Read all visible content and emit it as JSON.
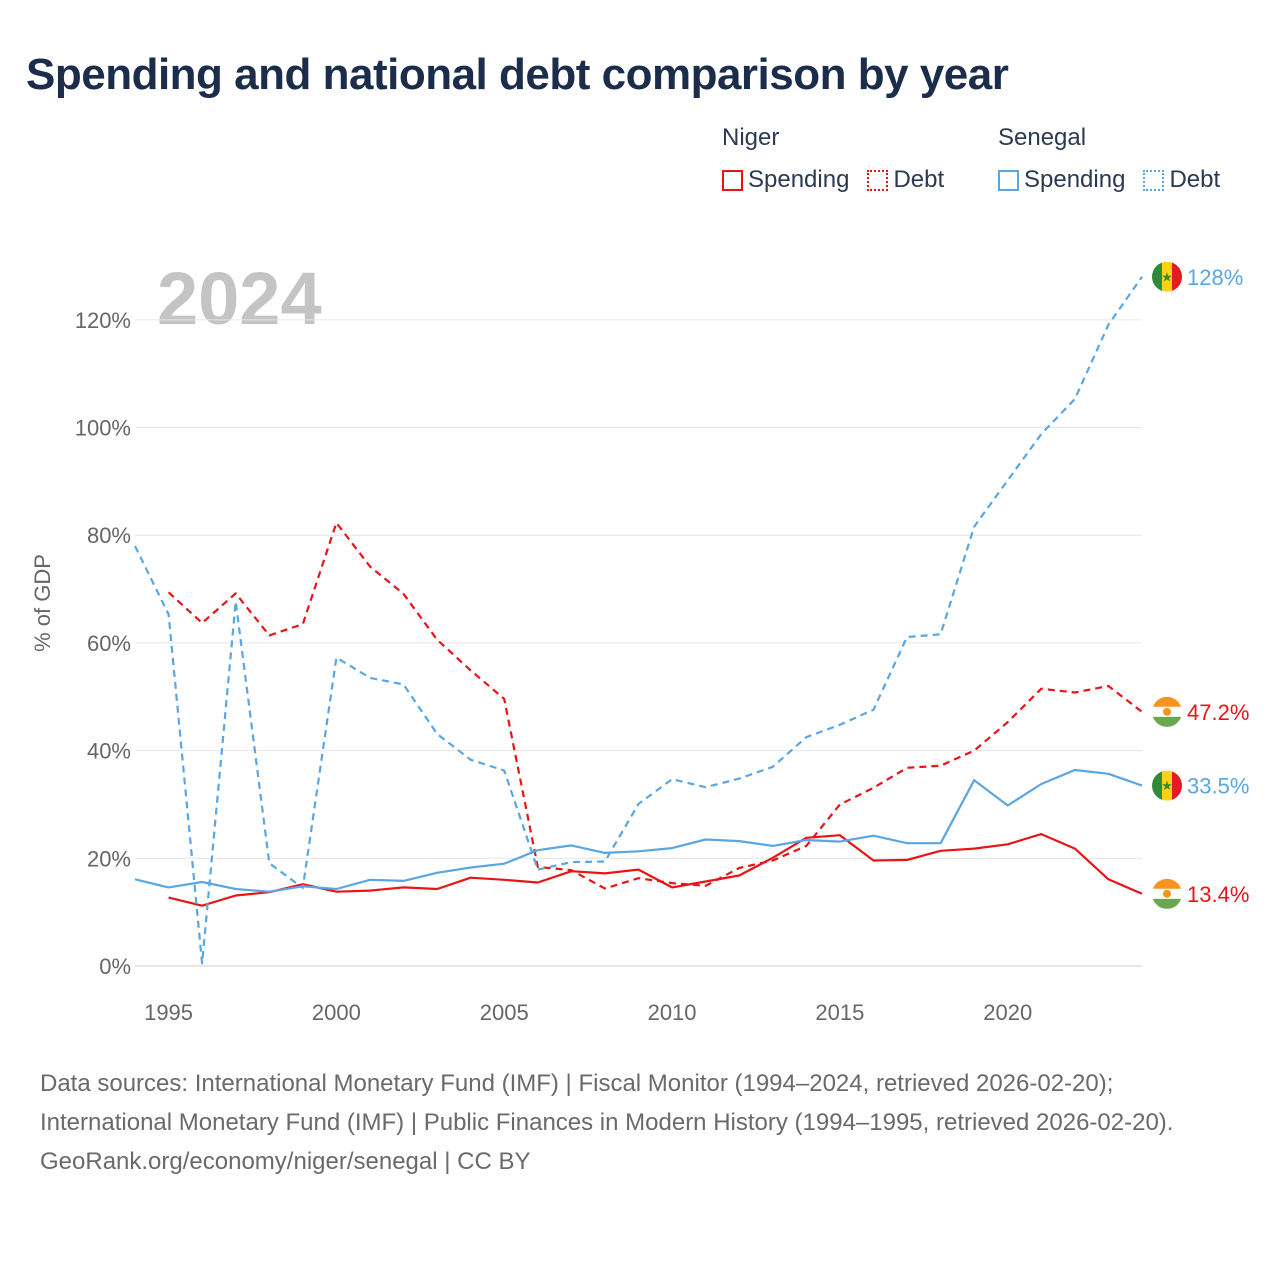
{
  "title": "Spending and national debt comparison by year",
  "legend": {
    "groups": [
      {
        "country": "Niger",
        "color": "#e81416",
        "items": [
          {
            "label": "Spending",
            "style": "solid"
          },
          {
            "label": "Debt",
            "style": "dotted"
          }
        ]
      },
      {
        "country": "Senegal",
        "color": "#5aa6e3",
        "items": [
          {
            "label": "Spending",
            "style": "solid"
          },
          {
            "label": "Debt",
            "style": "dotted"
          }
        ]
      }
    ]
  },
  "chart_data": {
    "type": "line",
    "year_label": "2024",
    "ylabel": "% of GDP",
    "xlim": [
      1994,
      2024
    ],
    "ylim": [
      0,
      130
    ],
    "x_ticks": [
      1995,
      2000,
      2005,
      2010,
      2015,
      2020
    ],
    "y_ticks": [
      0,
      20,
      40,
      60,
      80,
      100,
      120
    ],
    "y_tick_labels": [
      "0%",
      "20%",
      "40%",
      "60%",
      "80%",
      "100%",
      "120%"
    ],
    "grid": true,
    "series": [
      {
        "name": "Niger Spending",
        "country": "Niger",
        "kind": "spending",
        "color": "#e81416",
        "dash": "solid",
        "x": [
          1995,
          1996,
          1997,
          1998,
          1999,
          2000,
          2001,
          2002,
          2003,
          2004,
          2005,
          2006,
          2007,
          2008,
          2009,
          2010,
          2011,
          2012,
          2013,
          2014,
          2015,
          2016,
          2017,
          2018,
          2019,
          2020,
          2021,
          2022,
          2023,
          2024
        ],
        "y": [
          12.7,
          11.2,
          13.1,
          13.7,
          15.2,
          13.8,
          14.0,
          14.6,
          14.3,
          16.4,
          16.0,
          15.5,
          17.6,
          17.2,
          17.9,
          14.6,
          15.7,
          16.8,
          20.1,
          23.8,
          24.3,
          19.6,
          19.7,
          21.4,
          21.8,
          22.6,
          24.5,
          21.8,
          16.1,
          13.4
        ],
        "end_label": "13.4%",
        "flag": "niger"
      },
      {
        "name": "Niger Debt",
        "country": "Niger",
        "kind": "debt",
        "color": "#e81416",
        "dash": "dashed",
        "x": [
          1995,
          1996,
          1997,
          1998,
          1999,
          2000,
          2001,
          2002,
          2003,
          2004,
          2005,
          2006,
          2007,
          2008,
          2009,
          2010,
          2011,
          2012,
          2013,
          2014,
          2015,
          2016,
          2017,
          2018,
          2019,
          2020,
          2021,
          2022,
          2023,
          2024
        ],
        "y": [
          69.4,
          63.7,
          69.2,
          61.4,
          63.5,
          82.3,
          74.2,
          69.1,
          60.6,
          54.9,
          49.6,
          18.4,
          17.8,
          14.4,
          16.3,
          15.4,
          14.9,
          18.2,
          19.6,
          22.3,
          30.0,
          33.1,
          36.8,
          37.2,
          40.0,
          45.3,
          51.5,
          50.8,
          52.0,
          47.2
        ],
        "end_label": "47.2%",
        "flag": "niger"
      },
      {
        "name": "Senegal Spending",
        "country": "Senegal",
        "kind": "spending",
        "color": "#5aa6e3",
        "dash": "solid",
        "x": [
          1994,
          1995,
          1996,
          1997,
          1998,
          1999,
          2000,
          2001,
          2002,
          2003,
          2004,
          2005,
          2006,
          2007,
          2008,
          2009,
          2010,
          2011,
          2012,
          2013,
          2014,
          2015,
          2016,
          2017,
          2018,
          2019,
          2020,
          2021,
          2022,
          2023,
          2024
        ],
        "y": [
          16.1,
          14.6,
          15.6,
          14.3,
          13.8,
          14.8,
          14.3,
          16.0,
          15.8,
          17.3,
          18.3,
          19.0,
          21.5,
          22.4,
          21.0,
          21.3,
          21.9,
          23.5,
          23.2,
          22.3,
          23.4,
          23.1,
          24.2,
          22.8,
          22.8,
          34.5,
          29.8,
          33.8,
          36.4,
          35.7,
          33.5
        ],
        "end_label": "33.5%",
        "flag": "senegal"
      },
      {
        "name": "Senegal Debt",
        "country": "Senegal",
        "kind": "debt",
        "color": "#5aa6e3",
        "dash": "dashed",
        "x": [
          1994,
          1995,
          1996,
          1997,
          1998,
          1999,
          2000,
          2001,
          2002,
          2003,
          2004,
          2005,
          2006,
          2007,
          2008,
          2009,
          2010,
          2011,
          2012,
          2013,
          2014,
          2015,
          2016,
          2017,
          2018,
          2019,
          2020,
          2021,
          2022,
          2023,
          2024
        ],
        "y": [
          78.0,
          65.3,
          0.5,
          67.7,
          19.1,
          14.5,
          57.3,
          53.5,
          52.3,
          43.1,
          38.3,
          36.3,
          17.9,
          19.3,
          19.4,
          30.1,
          34.7,
          33.2,
          34.8,
          37.0,
          42.5,
          44.8,
          47.6,
          61.1,
          61.6,
          81.6,
          90.2,
          98.8,
          105.3,
          119.1,
          128.0
        ],
        "end_label": "128%",
        "flag": "senegal"
      }
    ]
  },
  "footer": {
    "sources": "Data sources: International Monetary Fund (IMF) | Fiscal Monitor (1994–2024, retrieved 2026-02-20); International Monetary Fund (IMF) | Public Finances in Modern History (1994–1995, retrieved 2026-02-20).",
    "credit": "GeoRank.org/economy/niger/senegal | CC BY"
  }
}
